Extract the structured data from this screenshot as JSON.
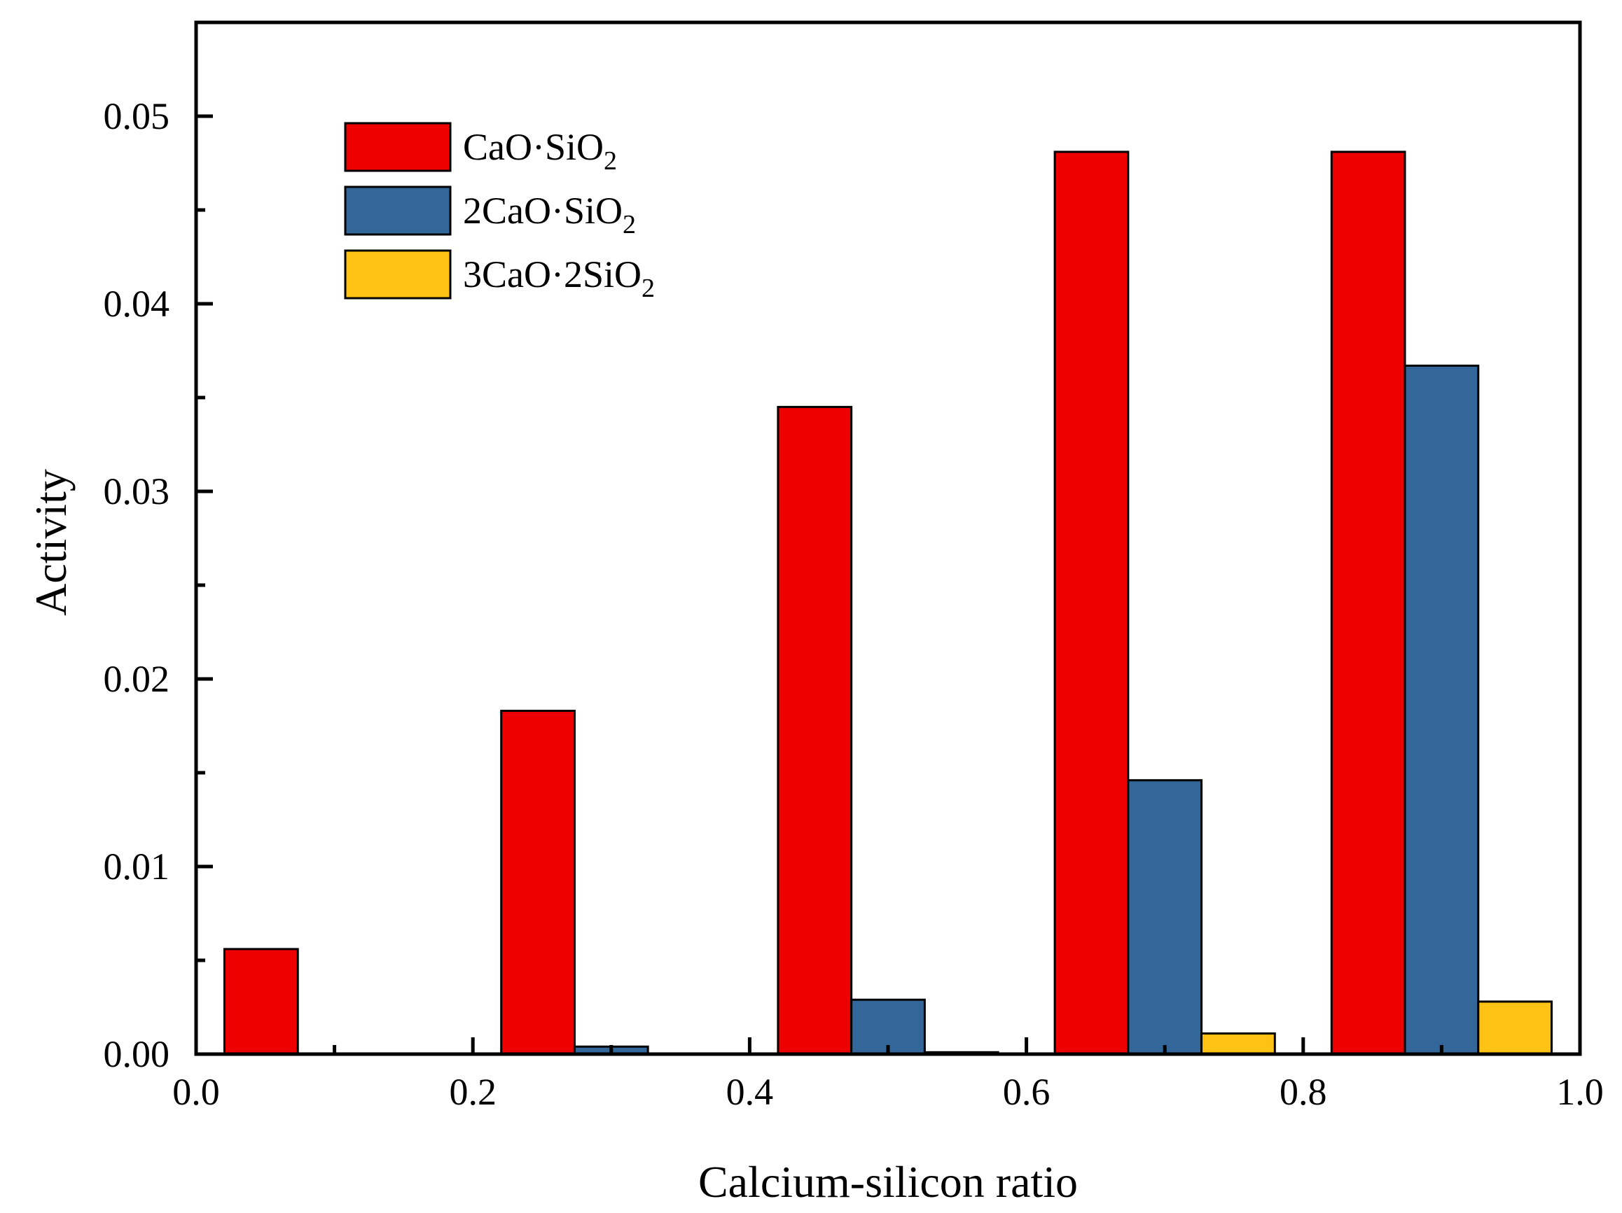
{
  "chart_data": {
    "type": "bar",
    "xlabel": "Calcium-silicon ratio",
    "ylabel": "Activity",
    "xlim": [
      0.0,
      1.0
    ],
    "ylim": [
      0.0,
      0.055
    ],
    "x_ticks": [
      "0.0",
      "0.2",
      "0.4",
      "0.6",
      "0.8",
      "1.0"
    ],
    "y_ticks": [
      "0.00",
      "0.01",
      "0.02",
      "0.03",
      "0.04",
      "0.05"
    ],
    "x_tick_values": [
      0.0,
      0.2,
      0.4,
      0.6,
      0.8,
      1.0
    ],
    "y_tick_values": [
      0.0,
      0.01,
      0.02,
      0.03,
      0.04,
      0.05
    ],
    "group_centers": [
      0.1,
      0.3,
      0.5,
      0.7,
      0.9
    ],
    "bar_width": 0.053,
    "legend_position": "top-left",
    "grid": false,
    "series": [
      {
        "name": "CaO·SiO",
        "subscript": "2",
        "color": "#ee0000",
        "values": [
          0.0056,
          0.0183,
          0.0345,
          0.0481,
          0.0481
        ]
      },
      {
        "name": "2CaO·SiO",
        "subscript": "2",
        "color": "#336699",
        "values": [
          0.0,
          0.0004,
          0.0029,
          0.0146,
          0.0367
        ]
      },
      {
        "name": "3CaO·2SiO",
        "subscript": "2",
        "color": "#fdc214",
        "values": [
          0.0,
          0.0,
          0.0001,
          0.0011,
          0.0028
        ]
      }
    ]
  }
}
